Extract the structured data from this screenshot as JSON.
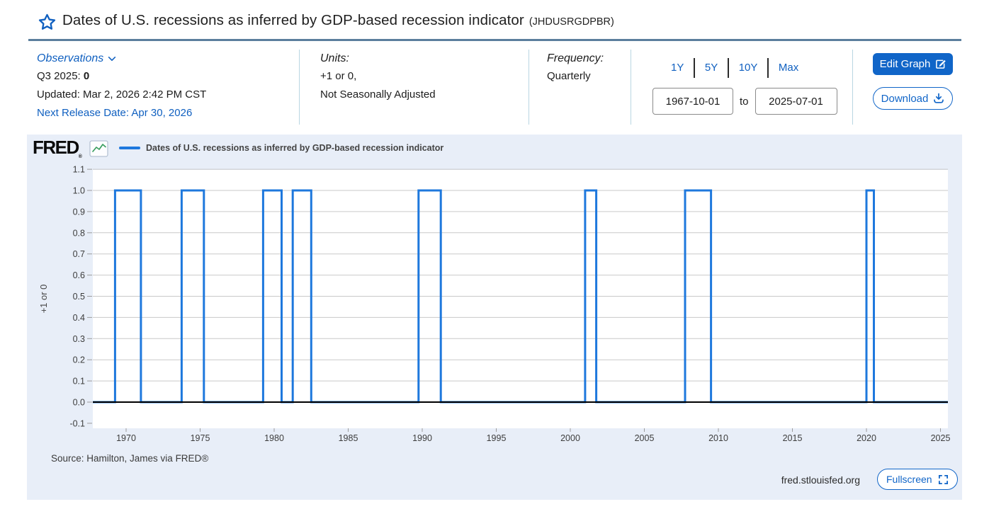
{
  "header": {
    "title": "Dates of U.S. recessions as inferred by GDP-based recession indicator",
    "series_id": "(JHDUSRGDPBR)"
  },
  "meta": {
    "observations": {
      "label": "Observations",
      "latest_period": "Q3 2025:",
      "latest_value": "0",
      "updated": "Updated: Mar 2, 2026 2:42 PM CST",
      "next_release": "Next Release Date: Apr 30, 2026"
    },
    "units": {
      "label": "Units:",
      "line1": "+1 or 0,",
      "line2": "Not Seasonally Adjusted"
    },
    "frequency": {
      "label": "Frequency:",
      "value": "Quarterly"
    },
    "range": {
      "zoom_links": [
        "1Y",
        "5Y",
        "10Y",
        "Max"
      ],
      "start_date": "1967-10-01",
      "to_label": "to",
      "end_date": "2025-07-01"
    },
    "actions": {
      "edit_graph": "Edit Graph",
      "download": "Download"
    }
  },
  "chart": {
    "brand": "FRED",
    "brand_reg": "®",
    "legend_label": "Dates of U.S. recessions as inferred by GDP-based recession indicator",
    "source": "Source: Hamilton, James via FRED®",
    "site": "fred.stlouisfed.org",
    "fullscreen_label": "Fullscreen"
  },
  "chart_data": {
    "type": "line",
    "subtype": "step-indicator",
    "title": "Dates of U.S. recessions as inferred by GDP-based recession indicator",
    "series_id": "JHDUSRGDPBR",
    "ylabel": "+1 or 0",
    "units": "+1 or 0, Not Seasonally Adjusted",
    "frequency": "Quarterly",
    "x_range_dates": [
      "1967-10-01",
      "2025-07-01"
    ],
    "x_start": 1967.75,
    "x_end": 2025.5,
    "ylim": [
      -0.1,
      1.1
    ],
    "y_ticks": [
      1.1,
      1.0,
      0.9,
      0.8,
      0.7,
      0.6,
      0.5,
      0.4,
      0.3,
      0.2,
      0.1,
      0.0,
      -0.1
    ],
    "x_ticks": [
      1970,
      1975,
      1980,
      1985,
      1990,
      1995,
      2000,
      2005,
      2010,
      2015,
      2020,
      2025
    ],
    "baseline_value": 0,
    "recession_value": 1,
    "grid": true,
    "legend_position": "top-left",
    "line_color": "#1e78dd",
    "zero_line_color": "#000000",
    "recessions": [
      {
        "label": "1969Q2–1970Q4",
        "start": 1969.25,
        "end": 1971.0
      },
      {
        "label": "1973Q4–1975Q1",
        "start": 1973.75,
        "end": 1975.25
      },
      {
        "label": "1979Q2–1980Q2",
        "start": 1979.25,
        "end": 1980.5
      },
      {
        "label": "1981Q2–1982Q2",
        "start": 1981.25,
        "end": 1982.5
      },
      {
        "label": "1989Q4–1991Q1",
        "start": 1989.75,
        "end": 1991.25
      },
      {
        "label": "2001Q1–2001Q3",
        "start": 2001.0,
        "end": 2001.75
      },
      {
        "label": "2007Q4–2009Q2",
        "start": 2007.75,
        "end": 2009.5
      },
      {
        "label": "2020Q1–2020Q2",
        "start": 2020.0,
        "end": 2020.5
      }
    ]
  },
  "colors": {
    "accent_blue": "#1065c8",
    "link_blue": "#1060c0",
    "title_rule": "#5b7e9d",
    "card_bg": "#e8eef8",
    "divider": "#b9d6e2",
    "gridline": "#c9c9c9",
    "logo_chart_line": "#3a9e5f"
  }
}
